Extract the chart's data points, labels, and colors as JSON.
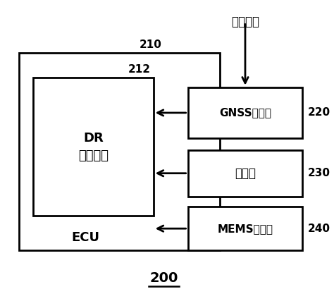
{
  "title": "200",
  "satellite_label": "卫星信号",
  "ecu_label": "ECU",
  "ecu_id": "210",
  "dr_label": "DR\n推算模块",
  "dr_id": "212",
  "gnss_label": "GNSS接收机",
  "gnss_id": "220",
  "odometer_label": "里程计",
  "odometer_id": "230",
  "mems_label": "MEMS陀螺仪",
  "mems_id": "240",
  "bg_color": "#ffffff",
  "box_color": "#ffffff",
  "box_edge_color": "#000000",
  "text_color": "#000000",
  "arrow_color": "#000000"
}
